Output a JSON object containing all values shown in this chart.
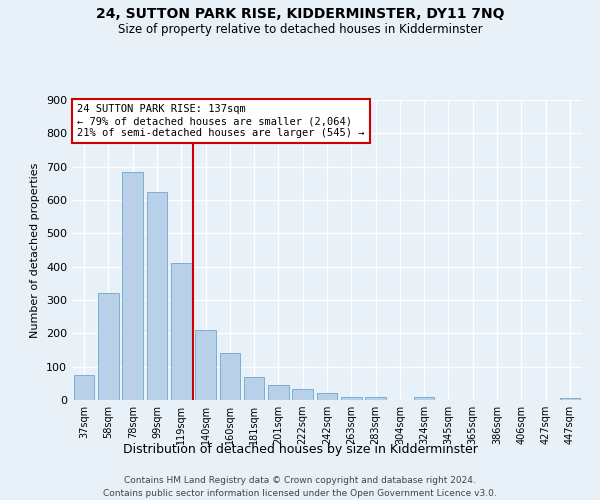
{
  "title": "24, SUTTON PARK RISE, KIDDERMINSTER, DY11 7NQ",
  "subtitle": "Size of property relative to detached houses in Kidderminster",
  "xlabel": "Distribution of detached houses by size in Kidderminster",
  "ylabel": "Number of detached properties",
  "categories": [
    "37sqm",
    "58sqm",
    "78sqm",
    "99sqm",
    "119sqm",
    "140sqm",
    "160sqm",
    "181sqm",
    "201sqm",
    "222sqm",
    "242sqm",
    "263sqm",
    "283sqm",
    "304sqm",
    "324sqm",
    "345sqm",
    "365sqm",
    "386sqm",
    "406sqm",
    "427sqm",
    "447sqm"
  ],
  "values": [
    75,
    320,
    685,
    625,
    410,
    210,
    140,
    70,
    45,
    33,
    21,
    10,
    8,
    0,
    8,
    0,
    0,
    0,
    0,
    0,
    7
  ],
  "bar_color": "#b8d0e8",
  "bar_edge_color": "#7aafd4",
  "background_color": "#e8f0f8",
  "grid_color": "#ffffff",
  "property_line_index": 4.5,
  "property_label": "24 SUTTON PARK RISE: 137sqm",
  "annotation_line1": "← 79% of detached houses are smaller (2,064)",
  "annotation_line2": "21% of semi-detached houses are larger (545) →",
  "annotation_box_color": "#ffffff",
  "annotation_box_edge": "#cc0000",
  "property_line_color": "#cc0000",
  "ylim": [
    0,
    900
  ],
  "yticks": [
    0,
    100,
    200,
    300,
    400,
    500,
    600,
    700,
    800,
    900
  ],
  "footer_line1": "Contains HM Land Registry data © Crown copyright and database right 2024.",
  "footer_line2": "Contains public sector information licensed under the Open Government Licence v3.0."
}
